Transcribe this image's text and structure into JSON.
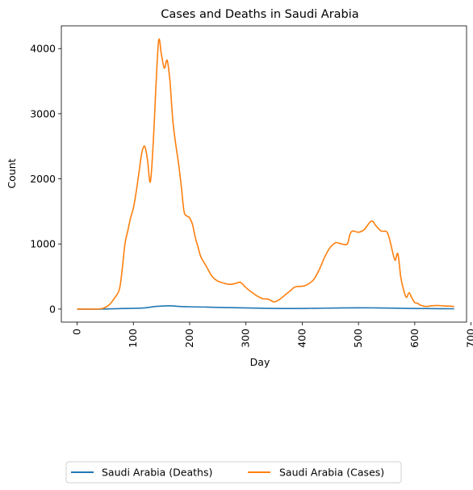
{
  "chart_data": {
    "type": "line",
    "title": "Cases and Deaths in Saudi Arabia",
    "xlabel": "Day",
    "ylabel": "Count",
    "xlim": [
      -28,
      692
    ],
    "ylim": [
      -200,
      4350
    ],
    "xticks": [
      0,
      100,
      200,
      300,
      400,
      500,
      600,
      700
    ],
    "yticks": [
      0,
      1000,
      2000,
      3000,
      4000
    ],
    "grid": false,
    "legend_placement": "bottom-center",
    "series": [
      {
        "name": "Saudi Arabia (Deaths)",
        "color": "#1f77b4",
        "x": [
          0,
          40,
          60,
          80,
          100,
          120,
          140,
          165,
          180,
          200,
          230,
          260,
          290,
          320,
          350,
          380,
          420,
          460,
          500,
          530,
          560,
          590,
          620,
          650,
          670
        ],
        "y": [
          0,
          0,
          3,
          8,
          12,
          18,
          40,
          50,
          40,
          35,
          30,
          25,
          20,
          15,
          10,
          8,
          12,
          16,
          20,
          18,
          14,
          10,
          8,
          6,
          5
        ]
      },
      {
        "name": "Saudi Arabia (Cases)",
        "color": "#ff7f0e",
        "x": [
          0,
          30,
          45,
          55,
          65,
          75,
          80,
          85,
          90,
          95,
          100,
          105,
          110,
          115,
          120,
          125,
          130,
          135,
          140,
          145,
          150,
          155,
          160,
          165,
          170,
          175,
          180,
          185,
          190,
          195,
          200,
          205,
          210,
          215,
          220,
          230,
          240,
          250,
          260,
          270,
          280,
          290,
          300,
          310,
          320,
          330,
          340,
          350,
          360,
          370,
          380,
          385,
          390,
          400,
          405,
          410,
          420,
          430,
          440,
          450,
          460,
          470,
          480,
          485,
          490,
          500,
          510,
          520,
          525,
          530,
          540,
          550,
          555,
          560,
          565,
          570,
          575,
          580,
          585,
          590,
          595,
          600,
          605,
          610,
          620,
          630,
          640,
          650,
          660,
          670
        ],
        "y": [
          0,
          0,
          10,
          50,
          150,
          300,
          600,
          1000,
          1200,
          1400,
          1550,
          1800,
          2100,
          2400,
          2500,
          2300,
          1950,
          2500,
          3400,
          4130,
          3900,
          3700,
          3820,
          3500,
          2900,
          2550,
          2250,
          1900,
          1500,
          1430,
          1400,
          1300,
          1100,
          950,
          800,
          650,
          500,
          430,
          400,
          380,
          390,
          410,
          330,
          260,
          200,
          160,
          150,
          110,
          150,
          220,
          290,
          330,
          345,
          350,
          360,
          380,
          450,
          600,
          800,
          950,
          1020,
          1000,
          1000,
          1150,
          1200,
          1180,
          1220,
          1330,
          1350,
          1290,
          1200,
          1190,
          1080,
          900,
          750,
          850,
          500,
          300,
          180,
          250,
          170,
          100,
          90,
          60,
          40,
          50,
          55,
          50,
          45,
          40
        ]
      }
    ]
  }
}
